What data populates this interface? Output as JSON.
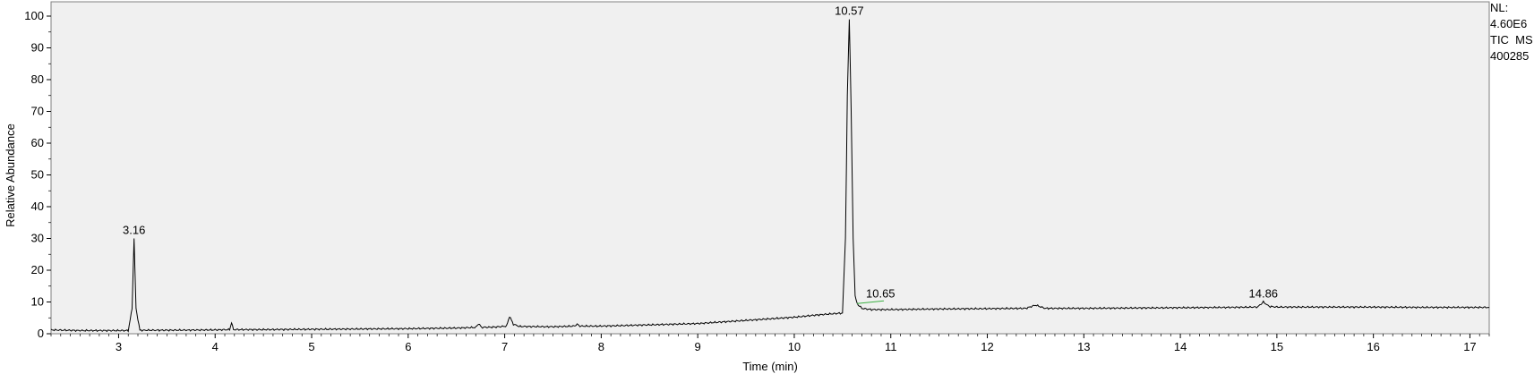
{
  "info": {
    "nl_label": "NL:",
    "nl_value": "4.60E6",
    "trace": "TIC  MS",
    "sample": "400285"
  },
  "chart_data": {
    "type": "line",
    "title": "",
    "xlabel": "Time (min)",
    "ylabel": "Relative Abundance",
    "xlim": [
      2.3,
      17.2
    ],
    "ylim": [
      0,
      100
    ],
    "x_ticks": [
      3,
      4,
      5,
      6,
      7,
      8,
      9,
      10,
      11,
      12,
      13,
      14,
      15,
      16,
      17
    ],
    "y_ticks": [
      0,
      10,
      20,
      30,
      40,
      50,
      60,
      70,
      80,
      90,
      100
    ],
    "grid": false,
    "legend": "none",
    "colors": {
      "plot_background": "#f0f0f0",
      "trace": "#000000",
      "frame": "#808080",
      "peak_marker": "#3cb043"
    },
    "series": [
      {
        "x": [
          2.3,
          2.6,
          2.9,
          3.1,
          3.14,
          3.16,
          3.18,
          3.22,
          3.5,
          4.0,
          4.15,
          4.17,
          4.19,
          4.5,
          5.0,
          5.5,
          6.0,
          6.5,
          6.7,
          6.73,
          6.76,
          6.9,
          7.02,
          7.05,
          7.09,
          7.15,
          7.5,
          7.72,
          7.75,
          7.78,
          8.0,
          8.5,
          9.0,
          9.3,
          9.5,
          9.8,
          10.0,
          10.2,
          10.4,
          10.5,
          10.53,
          10.55,
          10.57,
          10.59,
          10.61,
          10.63,
          10.65,
          10.7,
          10.8,
          11.0,
          11.5,
          12.0,
          12.4,
          12.5,
          12.6,
          13.0,
          13.5,
          14.0,
          14.5,
          14.8,
          14.86,
          14.92,
          15.0,
          15.5,
          16.0,
          16.5,
          17.0,
          17.2
        ],
        "y": [
          1.2,
          1.0,
          1.0,
          1.0,
          8.0,
          30.0,
          8.0,
          1.1,
          1.1,
          1.2,
          1.3,
          3.5,
          1.3,
          1.3,
          1.4,
          1.5,
          1.6,
          1.8,
          2.0,
          3.2,
          2.0,
          2.1,
          2.4,
          5.5,
          3.0,
          2.3,
          2.2,
          2.4,
          3.0,
          2.4,
          2.4,
          2.8,
          3.2,
          3.8,
          4.2,
          4.8,
          5.2,
          5.8,
          6.3,
          6.5,
          30.0,
          75.0,
          99.0,
          70.0,
          30.0,
          12.0,
          9.5,
          8.0,
          7.6,
          7.6,
          7.8,
          7.9,
          8.0,
          9.0,
          8.0,
          8.0,
          8.1,
          8.2,
          8.3,
          8.4,
          10.0,
          8.6,
          8.4,
          8.4,
          8.4,
          8.3,
          8.3,
          8.3
        ]
      }
    ],
    "peak_labels": [
      {
        "x": 3.16,
        "y": 30.0,
        "text": "3.16"
      },
      {
        "x": 10.57,
        "y": 99.0,
        "text": "10.57"
      },
      {
        "x": 10.65,
        "y": 9.5,
        "text": "10.65"
      },
      {
        "x": 14.86,
        "y": 10.0,
        "text": "14.86"
      }
    ]
  }
}
